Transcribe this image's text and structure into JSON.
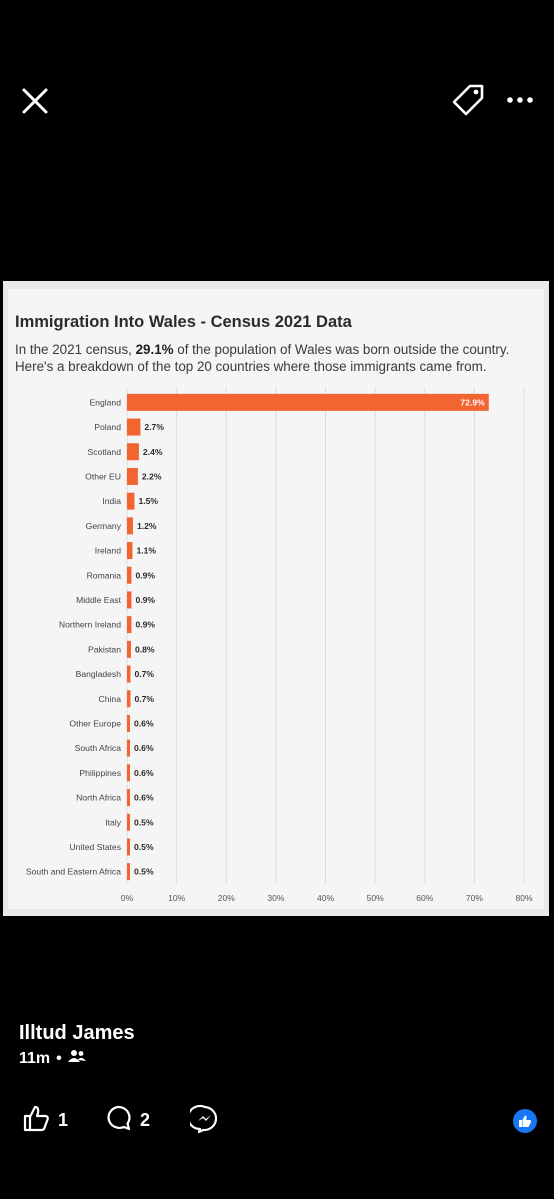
{
  "toolbar": {
    "close_icon": "close-icon",
    "tag_icon": "tag-icon",
    "more_icon": "more-options-icon"
  },
  "chart": {
    "title": "Immigration Into Wales - Census 2021 Data",
    "subtitle_pre": "In the 2021 census, ",
    "subtitle_bold": "29.1%",
    "subtitle_post": " of the population of Wales was born outside the country. Here's a breakdown of the top 20 countries where those immigrants came from.",
    "bar_color": "#f26430"
  },
  "chart_data": {
    "type": "bar",
    "orientation": "horizontal",
    "title": "Immigration Into Wales - Census 2021 Data",
    "categories": [
      "England",
      "Poland",
      "Scotland",
      "Other EU",
      "India",
      "Germany",
      "Ireland",
      "Romania",
      "Middle East",
      "Northern Ireland",
      "Pakistan",
      "Bangladesh",
      "China",
      "Other Europe",
      "South Africa",
      "Philippines",
      "North Africa",
      "Italy",
      "United States",
      "South and Eastern Africa"
    ],
    "values": [
      72.9,
      2.7,
      2.4,
      2.2,
      1.5,
      1.2,
      1.1,
      0.9,
      0.9,
      0.9,
      0.8,
      0.7,
      0.7,
      0.6,
      0.6,
      0.6,
      0.6,
      0.5,
      0.5,
      0.5
    ],
    "value_labels": [
      "72.9%",
      "2.7%",
      "2.4%",
      "2.2%",
      "1.5%",
      "1.2%",
      "1.1%",
      "0.9%",
      "0.9%",
      "0.9%",
      "0.8%",
      "0.7%",
      "0.7%",
      "0.6%",
      "0.6%",
      "0.6%",
      "0.6%",
      "0.5%",
      "0.5%",
      "0.5%"
    ],
    "xticks": [
      "0%",
      "10%",
      "20%",
      "30%",
      "40%",
      "50%",
      "60%",
      "70%",
      "80%"
    ],
    "xlim": [
      0,
      80
    ],
    "grid": true
  },
  "post": {
    "author": "Illtud James",
    "time": "11m",
    "separator": "•",
    "audience_icon": "friends-icon",
    "likes": "1",
    "comments": "2",
    "like_icon": "thumbs-up-icon",
    "comment_icon": "comment-icon",
    "messenger_icon": "messenger-icon",
    "reaction_icon": "like-reaction-icon"
  }
}
